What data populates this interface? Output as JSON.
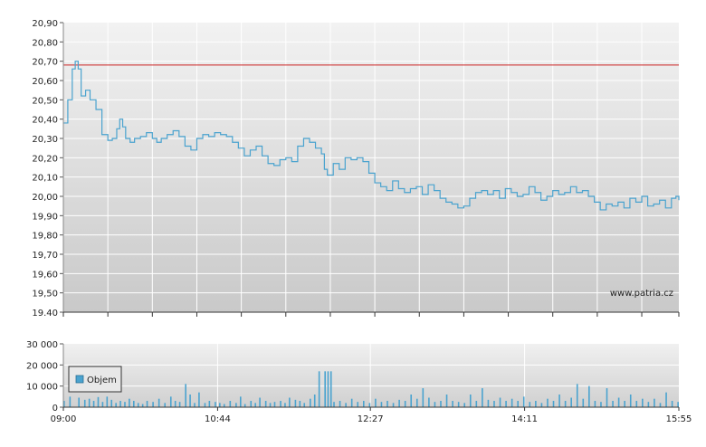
{
  "chart_data": [
    {
      "type": "line",
      "y_axis": {
        "ticks": [
          "20,90",
          "20,80",
          "20,70",
          "20,60",
          "20,50",
          "20,40",
          "20,30",
          "20,20",
          "20,10",
          "20,00",
          "19,90",
          "19,80",
          "19,70",
          "19,60",
          "19,50",
          "19.40"
        ],
        "ylim": [
          19.4,
          20.9
        ]
      },
      "reference_line": {
        "value": 20.68,
        "color": "#cc2222"
      },
      "x_range_minutes": [
        0,
        415
      ],
      "watermark": "www.patria.cz",
      "grid": true,
      "line_color": "#4aa3cf",
      "series": [
        {
          "x": [
            0,
            3,
            6,
            8,
            10,
            12,
            15,
            18,
            22,
            26,
            30,
            33,
            36,
            38,
            40,
            42,
            45,
            48,
            52,
            56,
            60,
            63,
            66,
            70,
            74,
            78,
            82,
            86,
            90,
            94,
            98,
            102,
            106,
            110,
            114,
            118,
            122,
            126,
            130,
            134,
            138,
            142,
            146,
            150,
            154,
            158,
            162,
            166,
            170,
            174,
            176,
            178,
            182,
            186,
            190,
            194,
            198,
            202,
            206,
            210,
            214,
            218,
            222,
            226,
            230,
            234,
            238,
            242,
            246,
            250,
            254,
            258,
            262,
            266,
            270,
            274,
            278,
            282,
            286,
            290,
            294,
            298,
            302,
            306,
            310,
            314,
            318,
            322,
            326,
            330,
            334,
            338,
            342,
            346,
            350,
            354,
            358,
            362,
            366,
            370,
            374,
            378,
            382,
            386,
            390,
            394,
            398,
            402,
            406,
            410,
            413,
            415
          ],
          "y": [
            20.38,
            20.5,
            20.66,
            20.7,
            20.66,
            20.52,
            20.55,
            20.5,
            20.45,
            20.32,
            20.29,
            20.3,
            20.35,
            20.4,
            20.36,
            20.3,
            20.28,
            20.3,
            20.31,
            20.33,
            20.3,
            20.28,
            20.3,
            20.32,
            20.34,
            20.31,
            20.26,
            20.24,
            20.3,
            20.32,
            20.31,
            20.33,
            20.32,
            20.31,
            20.28,
            20.25,
            20.21,
            20.24,
            20.26,
            20.21,
            20.17,
            20.16,
            20.19,
            20.2,
            20.18,
            20.26,
            20.3,
            20.28,
            20.25,
            20.22,
            20.14,
            20.11,
            20.17,
            20.14,
            20.2,
            20.19,
            20.2,
            20.18,
            20.12,
            20.07,
            20.05,
            20.03,
            20.08,
            20.04,
            20.02,
            20.04,
            20.05,
            20.01,
            20.06,
            20.03,
            19.99,
            19.97,
            19.96,
            19.94,
            19.95,
            19.99,
            20.02,
            20.03,
            20.01,
            20.03,
            19.99,
            20.04,
            20.02,
            20.0,
            20.01,
            20.05,
            20.02,
            19.98,
            20.0,
            20.03,
            20.01,
            20.02,
            20.05,
            20.02,
            20.03,
            20.0,
            19.97,
            19.93,
            19.96,
            19.95,
            19.97,
            19.94,
            19.99,
            19.97,
            20.0,
            19.95,
            19.96,
            19.98,
            19.94,
            19.99,
            20.0,
            19.98
          ]
        }
      ]
    },
    {
      "type": "bar",
      "y_axis": {
        "ticks": [
          "30 000",
          "20 000",
          "10 000",
          "0"
        ],
        "ylim": [
          0,
          30000
        ]
      },
      "x_ticks": [
        "09:00",
        "10:44",
        "12:27",
        "14:11",
        "15:55"
      ],
      "legend": {
        "label": "Objem",
        "position": "left"
      },
      "series": [
        {
          "name": "Objem",
          "x": [
            0,
            4,
            10,
            14,
            17,
            20,
            23,
            26,
            29,
            32,
            35,
            38,
            41,
            44,
            47,
            50,
            53,
            56,
            60,
            64,
            68,
            72,
            75,
            78,
            82,
            85,
            88,
            91,
            95,
            98,
            102,
            105,
            108,
            112,
            116,
            119,
            122,
            126,
            129,
            132,
            136,
            139,
            142,
            146,
            149,
            152,
            156,
            159,
            162,
            166,
            169,
            172,
            176,
            178,
            180,
            182,
            186,
            190,
            194,
            198,
            202,
            206,
            210,
            214,
            218,
            222,
            226,
            230,
            234,
            238,
            242,
            246,
            250,
            254,
            258,
            262,
            266,
            270,
            274,
            278,
            282,
            286,
            290,
            294,
            298,
            302,
            306,
            310,
            314,
            318,
            322,
            326,
            330,
            334,
            338,
            342,
            346,
            350,
            354,
            358,
            362,
            366,
            370,
            374,
            378,
            382,
            386,
            390,
            394,
            398,
            402,
            406,
            410,
            414
          ],
          "values": [
            3000,
            5000,
            4500,
            3500,
            4000,
            3000,
            4800,
            2500,
            5000,
            3500,
            2000,
            3000,
            2500,
            4000,
            3000,
            2000,
            1500,
            3000,
            2500,
            4000,
            2000,
            5000,
            3000,
            2500,
            11000,
            6000,
            2000,
            7000,
            2000,
            3000,
            2500,
            2000,
            1500,
            3000,
            2000,
            5000,
            1500,
            3000,
            2000,
            4500,
            3000,
            2000,
            2500,
            3000,
            2000,
            4500,
            3500,
            3000,
            2000,
            4000,
            6000,
            17000,
            17000,
            17000,
            17000,
            2500,
            3000,
            2000,
            4000,
            2500,
            3000,
            2000,
            4000,
            2500,
            3000,
            2000,
            3500,
            3000,
            6000,
            4000,
            9000,
            4500,
            2500,
            3000,
            6000,
            3000,
            2500,
            2000,
            6000,
            3000,
            9000,
            3500,
            3000,
            4500,
            3000,
            4000,
            3000,
            5000,
            2500,
            3000,
            2000,
            4000,
            3000,
            6000,
            3000,
            4500,
            11000,
            4000,
            10000,
            3000,
            2500,
            9000,
            3000,
            4500,
            3000,
            6000,
            3000,
            4000,
            2500,
            4000,
            2000,
            7000,
            3000,
            2500
          ]
        }
      ]
    }
  ]
}
